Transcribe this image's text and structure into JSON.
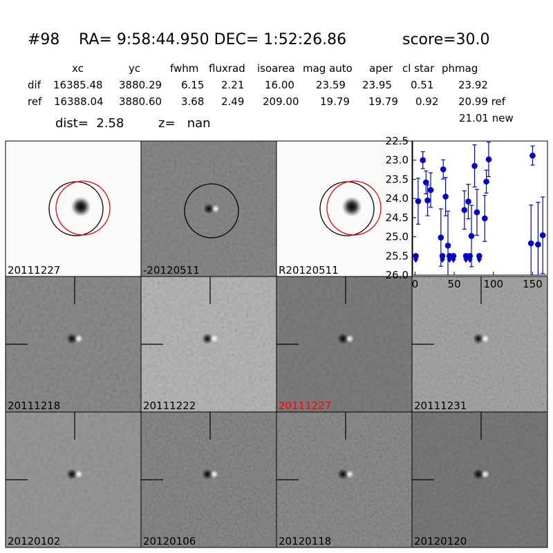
{
  "header": {
    "id": "#98",
    "coords": "RA= 9:58:44.950 DEC= 1:52:26.86",
    "score": "score=30.0"
  },
  "table": {
    "columns": [
      "xc",
      "yc",
      "fwhm",
      "fluxrad",
      "isoarea",
      "mag auto",
      "aper",
      "cl star",
      "phmag"
    ],
    "rows": [
      [
        "dif",
        "16385.48",
        "3880.29",
        "6.15",
        "2.21",
        "16.00",
        "23.59",
        "23.95",
        "0.51",
        "23.92"
      ],
      [
        "ref",
        "16388.04",
        "3880.60",
        "3.68",
        "2.49",
        "209.00",
        "19.79",
        "19.79",
        "0.92",
        "20.99 ref"
      ]
    ],
    "extra": "21.01 new"
  },
  "dist": "dist=  2.58",
  "z": "z=   nan",
  "panels": [
    {
      "label": "20111227",
      "color": "#000000"
    },
    {
      "label": "-20120511",
      "color": "#000000"
    },
    {
      "label": "R20120511",
      "color": "#000000"
    },
    {
      "label": "20111218",
      "color": "#000000"
    },
    {
      "label": "20111222",
      "color": "#000000"
    },
    {
      "label": "20111227",
      "color": "#ff0000"
    },
    {
      "label": "20111231",
      "color": "#000000"
    },
    {
      "label": "20120102",
      "color": "#000000"
    },
    {
      "label": "20120106",
      "color": "#000000"
    },
    {
      "label": "20120118",
      "color": "#000000"
    },
    {
      "label": "20120120",
      "color": "#000000"
    }
  ],
  "chart_data": {
    "type": "scatter",
    "color": "#0000c8",
    "x": [
      4,
      10,
      14,
      16,
      20,
      33,
      36,
      39,
      42,
      63,
      68,
      72,
      76,
      79,
      89,
      91,
      94,
      148,
      150,
      157,
      163
    ],
    "values": [
      24.07,
      23.0,
      23.58,
      24.05,
      23.78,
      25.02,
      23.24,
      23.95,
      25.23,
      24.3,
      24.08,
      24.98,
      23.15,
      24.36,
      24.52,
      23.56,
      22.98,
      25.17,
      22.88,
      25.2,
      24.96
    ],
    "errors": [
      0.6,
      0.22,
      0.3,
      0.4,
      0.45,
      0.75,
      0.25,
      0.5,
      0.9,
      0.5,
      0.45,
      0.8,
      0.55,
      0.6,
      0.6,
      0.3,
      0.45,
      1.0,
      0.25,
      1.1,
      1.0
    ],
    "limit_x": [
      1,
      35,
      44,
      49,
      65,
      70,
      82
    ],
    "limit_values": [
      25.5,
      25.5,
      25.5,
      25.5,
      25.5,
      25.5,
      25.5
    ],
    "xlim": [
      -3,
      169
    ],
    "ylim": [
      26.0,
      22.5
    ],
    "xticks": [
      0,
      50,
      100,
      150
    ],
    "yticks": [
      22.5,
      {
        "value": 23,
        "label": "23.0"
      },
      23.5,
      {
        "value": 24,
        "label": "24.0"
      },
      24.5,
      {
        "value": 25,
        "label": "25.0"
      },
      25.5,
      {
        "value": 26,
        "label": "26.0"
      }
    ]
  }
}
